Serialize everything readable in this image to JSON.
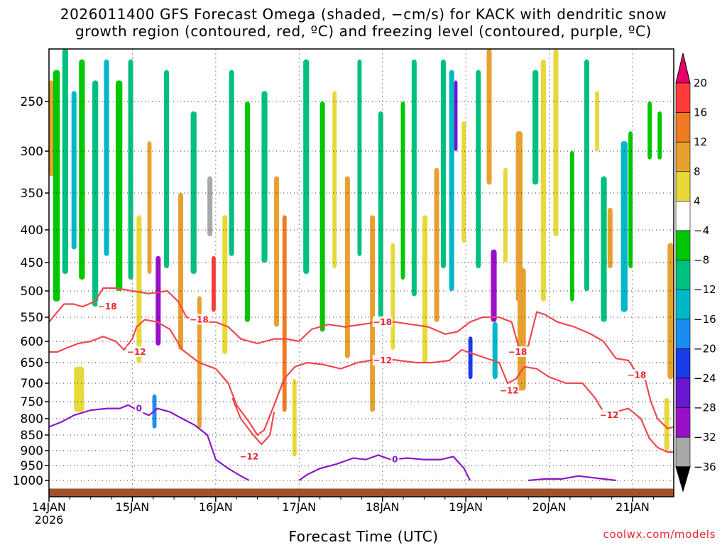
{
  "title_line1": "2026011400 GFS Forecast Omega (shaded, −cm/s) for KACK with dendritic snow",
  "title_line2": "growth region (contoured, red, ºC) and freezing level (contoured, purple, ºC)",
  "xlabel": "Forecast Time (UTC)",
  "credit": "coolwx.com/models",
  "chart_data": {
    "type": "heatmap",
    "title": "2026011400 GFS Forecast Omega for KACK",
    "xlabel": "Forecast Time (UTC)",
    "ylabel": "Pressure (hPa)",
    "x_ticks": [
      {
        "label": "14JAN",
        "sub": "2026",
        "day": 0
      },
      {
        "label": "15JAN",
        "day": 1
      },
      {
        "label": "16JAN",
        "day": 2
      },
      {
        "label": "17JAN",
        "day": 3
      },
      {
        "label": "18JAN",
        "day": 4
      },
      {
        "label": "19JAN",
        "day": 5
      },
      {
        "label": "20JAN",
        "day": 6
      },
      {
        "label": "21JAN",
        "day": 7
      }
    ],
    "xlim": [
      0,
      7.5
    ],
    "y_ticks": [
      250,
      300,
      350,
      400,
      450,
      500,
      550,
      600,
      650,
      700,
      750,
      800,
      850,
      900,
      950,
      1000
    ],
    "ylim": [
      1030,
      200
    ],
    "colorbar": {
      "labels": [
        "20",
        "16",
        "12",
        "8",
        "4",
        "−4",
        "−8",
        "−12",
        "−16",
        "−20",
        "−24",
        "−28",
        "−32",
        "−36"
      ],
      "colors": [
        "#ff3a3a",
        "#f07a22",
        "#e8a030",
        "#e8d838",
        "#ffffff",
        "#00c800",
        "#00c080",
        "#00b8c8",
        "#1a8ef0",
        "#1a3ce6",
        "#6a18d0",
        "#9a10c8",
        "#a8a8a8"
      ],
      "top_arrow": "#e8006a",
      "bottom_arrow": "#000000"
    },
    "omega_cells": [
      {
        "day": 0.0,
        "w": 0.06,
        "p0": 230,
        "p1": 330,
        "v": 10
      },
      {
        "day": 0.05,
        "w": 0.08,
        "p0": 220,
        "p1": 520,
        "v": -6
      },
      {
        "day": 0.16,
        "w": 0.07,
        "p0": 200,
        "p1": 470,
        "v": -8
      },
      {
        "day": 0.27,
        "w": 0.06,
        "p0": 240,
        "p1": 430,
        "v": -12
      },
      {
        "day": 0.36,
        "w": 0.07,
        "p0": 210,
        "p1": 480,
        "v": -6
      },
      {
        "day": 0.3,
        "w": 0.12,
        "p0": 660,
        "p1": 780,
        "v": 6
      },
      {
        "day": 0.52,
        "w": 0.07,
        "p0": 230,
        "p1": 530,
        "v": -8
      },
      {
        "day": 0.66,
        "w": 0.06,
        "p0": 210,
        "p1": 440,
        "v": -12
      },
      {
        "day": 0.8,
        "w": 0.08,
        "p0": 230,
        "p1": 500,
        "v": -6
      },
      {
        "day": 0.95,
        "w": 0.06,
        "p0": 210,
        "p1": 480,
        "v": -8
      },
      {
        "day": 1.05,
        "w": 0.06,
        "p0": 380,
        "p1": 650,
        "v": 6
      },
      {
        "day": 1.18,
        "w": 0.05,
        "p0": 290,
        "p1": 470,
        "v": 10
      },
      {
        "day": 1.28,
        "w": 0.06,
        "p0": 440,
        "p1": 610,
        "v": -28
      },
      {
        "day": 1.24,
        "w": 0.05,
        "p0": 730,
        "p1": 830,
        "v": -18
      },
      {
        "day": 1.38,
        "w": 0.06,
        "p0": 220,
        "p1": 460,
        "v": -8
      },
      {
        "day": 1.55,
        "w": 0.06,
        "p0": 350,
        "p1": 620,
        "v": 8
      },
      {
        "day": 1.7,
        "w": 0.07,
        "p0": 260,
        "p1": 470,
        "v": -8
      },
      {
        "day": 1.78,
        "w": 0.05,
        "p0": 510,
        "p1": 830,
        "v": 8
      },
      {
        "day": 1.9,
        "w": 0.06,
        "p0": 330,
        "p1": 410,
        "v": -32
      },
      {
        "day": 1.95,
        "w": 0.05,
        "p0": 440,
        "p1": 540,
        "v": 16
      },
      {
        "day": 2.08,
        "w": 0.06,
        "p0": 380,
        "p1": 630,
        "v": 6
      },
      {
        "day": 2.16,
        "w": 0.06,
        "p0": 220,
        "p1": 440,
        "v": -10
      },
      {
        "day": 2.35,
        "w": 0.06,
        "p0": 250,
        "p1": 560,
        "v": -6
      },
      {
        "day": 2.55,
        "w": 0.07,
        "p0": 240,
        "p1": 450,
        "v": -8
      },
      {
        "day": 2.7,
        "w": 0.06,
        "p0": 330,
        "p1": 570,
        "v": 8
      },
      {
        "day": 2.8,
        "w": 0.05,
        "p0": 380,
        "p1": 780,
        "v": 12
      },
      {
        "day": 2.92,
        "w": 0.05,
        "p0": 690,
        "p1": 920,
        "v": 6
      },
      {
        "day": 3.05,
        "w": 0.07,
        "p0": 210,
        "p1": 470,
        "v": -8
      },
      {
        "day": 3.25,
        "w": 0.06,
        "p0": 250,
        "p1": 580,
        "v": -6
      },
      {
        "day": 3.4,
        "w": 0.05,
        "p0": 240,
        "p1": 460,
        "v": 6
      },
      {
        "day": 3.55,
        "w": 0.06,
        "p0": 330,
        "p1": 640,
        "v": 10
      },
      {
        "day": 3.7,
        "w": 0.05,
        "p0": 210,
        "p1": 440,
        "v": -10
      },
      {
        "day": 3.85,
        "w": 0.06,
        "p0": 380,
        "p1": 780,
        "v": 8
      },
      {
        "day": 3.95,
        "w": 0.06,
        "p0": 260,
        "p1": 560,
        "v": -8
      },
      {
        "day": 4.1,
        "w": 0.05,
        "p0": 420,
        "p1": 620,
        "v": 6
      },
      {
        "day": 4.22,
        "w": 0.05,
        "p0": 250,
        "p1": 480,
        "v": -6
      },
      {
        "day": 4.35,
        "w": 0.06,
        "p0": 210,
        "p1": 510,
        "v": -8
      },
      {
        "day": 4.48,
        "w": 0.06,
        "p0": 380,
        "p1": 650,
        "v": 6
      },
      {
        "day": 4.62,
        "w": 0.06,
        "p0": 320,
        "p1": 560,
        "v": 8
      },
      {
        "day": 4.7,
        "w": 0.06,
        "p0": 210,
        "p1": 460,
        "v": -8
      },
      {
        "day": 4.8,
        "w": 0.06,
        "p0": 220,
        "p1": 500,
        "v": -14
      },
      {
        "day": 4.86,
        "w": 0.04,
        "p0": 230,
        "p1": 300,
        "v": -26
      },
      {
        "day": 4.95,
        "w": 0.05,
        "p0": 270,
        "p1": 420,
        "v": 6
      },
      {
        "day": 5.03,
        "w": 0.05,
        "p0": 590,
        "p1": 690,
        "v": -22
      },
      {
        "day": 5.12,
        "w": 0.06,
        "p0": 220,
        "p1": 460,
        "v": -10
      },
      {
        "day": 5.25,
        "w": 0.06,
        "p0": 200,
        "p1": 340,
        "v": 8
      },
      {
        "day": 5.3,
        "w": 0.07,
        "p0": 430,
        "p1": 560,
        "v": -30
      },
      {
        "day": 5.32,
        "w": 0.06,
        "p0": 560,
        "p1": 690,
        "v": -12
      },
      {
        "day": 5.45,
        "w": 0.05,
        "p0": 320,
        "p1": 450,
        "v": 6
      },
      {
        "day": 5.6,
        "w": 0.08,
        "p0": 280,
        "p1": 520,
        "v": 10
      },
      {
        "day": 5.62,
        "w": 0.1,
        "p0": 460,
        "p1": 720,
        "v": 8
      },
      {
        "day": 5.8,
        "w": 0.07,
        "p0": 220,
        "p1": 340,
        "v": -8
      },
      {
        "day": 5.9,
        "w": 0.06,
        "p0": 210,
        "p1": 520,
        "v": 6
      },
      {
        "day": 6.05,
        "w": 0.06,
        "p0": 200,
        "p1": 410,
        "v": 6
      },
      {
        "day": 6.25,
        "w": 0.05,
        "p0": 300,
        "p1": 520,
        "v": -6
      },
      {
        "day": 6.42,
        "w": 0.06,
        "p0": 210,
        "p1": 500,
        "v": -8
      },
      {
        "day": 6.55,
        "w": 0.05,
        "p0": 240,
        "p1": 300,
        "v": 4
      },
      {
        "day": 6.62,
        "w": 0.07,
        "p0": 330,
        "p1": 560,
        "v": -10
      },
      {
        "day": 6.7,
        "w": 0.06,
        "p0": 370,
        "p1": 460,
        "v": 10
      },
      {
        "day": 6.86,
        "w": 0.08,
        "p0": 290,
        "p1": 540,
        "v": -12
      },
      {
        "day": 6.95,
        "w": 0.05,
        "p0": 280,
        "p1": 460,
        "v": -6
      },
      {
        "day": 7.18,
        "w": 0.05,
        "p0": 250,
        "p1": 310,
        "v": -6
      },
      {
        "day": 7.3,
        "w": 0.05,
        "p0": 260,
        "p1": 310,
        "v": -6
      },
      {
        "day": 7.42,
        "w": 0.07,
        "p0": 420,
        "p1": 690,
        "v": 8
      },
      {
        "day": 7.38,
        "w": 0.06,
        "p0": 740,
        "p1": 900,
        "v": 6
      }
    ],
    "isotherm_labels": [
      {
        "text": "−18",
        "day": 0.7,
        "p": 530,
        "color": "#e8272f"
      },
      {
        "text": "−12",
        "day": 1.05,
        "p": 625,
        "color": "#e8272f"
      },
      {
        "text": "−18",
        "day": 1.8,
        "p": 555,
        "color": "#e8272f"
      },
      {
        "text": "−12",
        "day": 2.4,
        "p": 920,
        "color": "#e8272f"
      },
      {
        "text": "−18",
        "day": 4.0,
        "p": 560,
        "color": "#e8272f"
      },
      {
        "text": "−12",
        "day": 4.0,
        "p": 645,
        "color": "#e8272f"
      },
      {
        "text": "−18",
        "day": 5.62,
        "p": 625,
        "color": "#e8272f"
      },
      {
        "text": "−12",
        "day": 5.52,
        "p": 720,
        "color": "#e8272f"
      },
      {
        "text": "−12",
        "day": 6.72,
        "p": 790,
        "color": "#e8272f"
      },
      {
        "text": "−18",
        "day": 7.05,
        "p": 680,
        "color": "#e8272f"
      },
      {
        "text": "0",
        "day": 1.08,
        "p": 770,
        "color": "#8a18c8"
      },
      {
        "text": "0",
        "day": 4.15,
        "p": 930,
        "color": "#8a18c8"
      }
    ],
    "isotherm_m18": [
      [
        0.0,
        560
      ],
      [
        0.1,
        540
      ],
      [
        0.18,
        525
      ],
      [
        0.3,
        525
      ],
      [
        0.4,
        530
      ],
      [
        0.55,
        520
      ],
      [
        0.65,
        495
      ],
      [
        0.8,
        495
      ],
      [
        1.0,
        500
      ],
      [
        1.2,
        505
      ],
      [
        1.42,
        500
      ],
      [
        1.55,
        520
      ],
      [
        1.65,
        550
      ],
      [
        1.85,
        560
      ],
      [
        2.0,
        560
      ],
      [
        2.15,
        570
      ],
      [
        2.3,
        595
      ],
      [
        2.5,
        605
      ],
      [
        2.7,
        595
      ],
      [
        2.85,
        595
      ],
      [
        3.0,
        600
      ],
      [
        3.15,
        575
      ],
      [
        3.35,
        565
      ],
      [
        3.55,
        570
      ],
      [
        3.75,
        565
      ],
      [
        3.95,
        560
      ],
      [
        4.15,
        560
      ],
      [
        4.35,
        565
      ],
      [
        4.55,
        570
      ],
      [
        4.75,
        585
      ],
      [
        4.9,
        580
      ],
      [
        5.05,
        560
      ],
      [
        5.2,
        550
      ],
      [
        5.4,
        550
      ],
      [
        5.55,
        560
      ],
      [
        5.65,
        625
      ],
      [
        5.75,
        610
      ],
      [
        5.85,
        540
      ],
      [
        5.95,
        545
      ],
      [
        6.1,
        560
      ],
      [
        6.3,
        570
      ],
      [
        6.5,
        585
      ],
      [
        6.65,
        600
      ],
      [
        6.8,
        640
      ],
      [
        6.95,
        645
      ],
      [
        7.05,
        675
      ],
      [
        7.15,
        690
      ],
      [
        7.22,
        750
      ],
      [
        7.3,
        800
      ],
      [
        7.42,
        830
      ],
      [
        7.5,
        825
      ]
    ],
    "isotherm_m12": [
      [
        0.0,
        625
      ],
      [
        0.1,
        625
      ],
      [
        0.22,
        615
      ],
      [
        0.35,
        605
      ],
      [
        0.5,
        600
      ],
      [
        0.65,
        590
      ],
      [
        0.8,
        600
      ],
      [
        0.9,
        620
      ],
      [
        1.0,
        595
      ],
      [
        1.05,
        570
      ],
      [
        1.15,
        555
      ],
      [
        1.3,
        560
      ],
      [
        1.45,
        575
      ],
      [
        1.6,
        620
      ],
      [
        1.8,
        650
      ],
      [
        2.0,
        665
      ],
      [
        2.15,
        700
      ],
      [
        2.25,
        760
      ],
      [
        2.4,
        810
      ],
      [
        2.5,
        850
      ],
      [
        2.58,
        835
      ],
      [
        2.7,
        760
      ],
      [
        2.82,
        690
      ],
      [
        2.95,
        660
      ],
      [
        3.1,
        650
      ],
      [
        3.3,
        655
      ],
      [
        3.5,
        665
      ],
      [
        3.7,
        650
      ],
      [
        3.85,
        645
      ],
      [
        4.0,
        640
      ],
      [
        4.2,
        645
      ],
      [
        4.4,
        650
      ],
      [
        4.6,
        650
      ],
      [
        4.8,
        645
      ],
      [
        4.95,
        620
      ],
      [
        5.1,
        630
      ],
      [
        5.25,
        640
      ],
      [
        5.4,
        650
      ],
      [
        5.5,
        700
      ],
      [
        5.6,
        690
      ],
      [
        5.7,
        660
      ],
      [
        5.85,
        665
      ],
      [
        6.0,
        685
      ],
      [
        6.2,
        700
      ],
      [
        6.4,
        700
      ],
      [
        6.55,
        740
      ],
      [
        6.65,
        780
      ],
      [
        6.8,
        780
      ],
      [
        6.95,
        770
      ],
      [
        7.1,
        800
      ],
      [
        7.2,
        860
      ],
      [
        7.3,
        890
      ],
      [
        7.42,
        905
      ],
      [
        7.5,
        905
      ]
    ],
    "isotherm_m12_drop": [
      [
        2.2,
        740
      ],
      [
        2.3,
        800
      ],
      [
        2.45,
        850
      ],
      [
        2.55,
        880
      ],
      [
        2.65,
        850
      ],
      [
        2.7,
        780
      ]
    ],
    "freezing_level": [
      [
        0.0,
        825
      ],
      [
        0.15,
        810
      ],
      [
        0.3,
        790
      ],
      [
        0.5,
        775
      ],
      [
        0.7,
        770
      ],
      [
        0.85,
        770
      ],
      [
        0.95,
        760
      ],
      [
        1.1,
        780
      ],
      [
        1.2,
        790
      ],
      [
        1.3,
        770
      ],
      [
        1.45,
        780
      ],
      [
        1.6,
        800
      ],
      [
        1.75,
        820
      ],
      [
        1.9,
        850
      ],
      [
        2.0,
        930
      ],
      [
        2.15,
        960
      ],
      [
        2.3,
        985
      ],
      [
        2.4,
        1000
      ]
    ],
    "freezing_level_2": [
      [
        3.0,
        1000
      ],
      [
        3.1,
        980
      ],
      [
        3.25,
        960
      ],
      [
        3.45,
        945
      ],
      [
        3.65,
        925
      ],
      [
        3.8,
        930
      ],
      [
        3.95,
        915
      ],
      [
        4.1,
        930
      ],
      [
        4.3,
        925
      ],
      [
        4.5,
        930
      ],
      [
        4.7,
        930
      ],
      [
        4.85,
        920
      ],
      [
        4.98,
        960
      ],
      [
        5.05,
        1000
      ]
    ],
    "freezing_level_3": [
      [
        5.75,
        1000
      ],
      [
        5.95,
        995
      ],
      [
        6.15,
        995
      ],
      [
        6.35,
        985
      ],
      [
        6.5,
        990
      ],
      [
        6.65,
        995
      ],
      [
        6.8,
        1000
      ]
    ],
    "terrain_pressure": 1015,
    "terrain_color": "#a0522d"
  }
}
